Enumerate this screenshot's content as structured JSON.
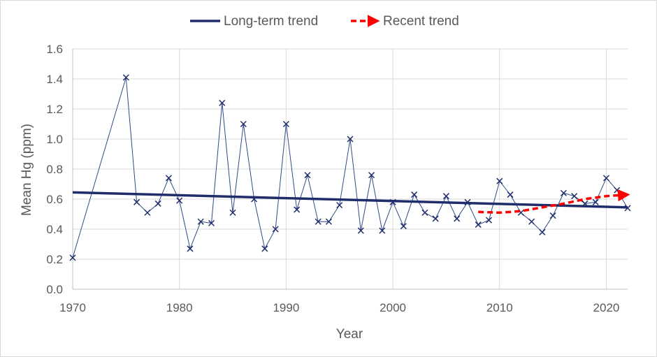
{
  "chart_data": {
    "type": "line",
    "title": "",
    "xlabel": "Year",
    "ylabel": "Mean Hg (ppm)",
    "xlim": [
      1970,
      2022
    ],
    "ylim": [
      0,
      1.6
    ],
    "xticks": [
      1970,
      1980,
      1990,
      2000,
      2010,
      2020
    ],
    "yticks": [
      "0.0",
      "0.2",
      "0.4",
      "0.6",
      "0.8",
      "1.0",
      "1.2",
      "1.4",
      "1.6"
    ],
    "grid": true,
    "legend_position": "top",
    "legend": [
      {
        "label": "Long-term trend",
        "color": "#1f2d6b",
        "style": "solid"
      },
      {
        "label": "Recent trend",
        "color": "#ff0000",
        "style": "dashed-arrow"
      }
    ],
    "series": [
      {
        "color": "#2f4a8a",
        "marker": "x",
        "x": [
          1970,
          1975,
          1976,
          1977,
          1978,
          1979,
          1980,
          1981,
          1982,
          1983,
          1984,
          1985,
          1986,
          1987,
          1988,
          1989,
          1990,
          1991,
          1992,
          1993,
          1994,
          1995,
          1996,
          1997,
          1998,
          1999,
          2000,
          2001,
          2002,
          2003,
          2004,
          2005,
          2006,
          2007,
          2008,
          2009,
          2010,
          2011,
          2012,
          2013,
          2014,
          2015,
          2016,
          2017,
          2018,
          2019,
          2020,
          2021,
          2022
        ],
        "y": [
          0.21,
          1.41,
          0.58,
          0.51,
          0.57,
          0.74,
          0.59,
          0.27,
          0.45,
          0.44,
          1.24,
          0.51,
          1.1,
          0.6,
          0.27,
          0.4,
          1.1,
          0.53,
          0.76,
          0.45,
          0.45,
          0.56,
          1.0,
          0.39,
          0.76,
          0.39,
          0.58,
          0.42,
          0.63,
          0.51,
          0.47,
          0.62,
          0.47,
          0.58,
          0.43,
          0.46,
          0.72,
          0.63,
          0.51,
          0.45,
          0.38,
          0.49,
          0.64,
          0.62,
          0.57,
          0.58,
          0.74,
          0.66,
          0.54
        ]
      },
      {
        "name": "Long-term trend",
        "color": "#1f2d6b",
        "x": [
          1970,
          2022
        ],
        "y": [
          0.645,
          0.545
        ]
      },
      {
        "name": "Recent trend",
        "color": "#ff0000",
        "x": [
          2008,
          2010,
          2012,
          2014,
          2016,
          2018,
          2020,
          2022
        ],
        "y": [
          0.515,
          0.51,
          0.52,
          0.545,
          0.57,
          0.6,
          0.62,
          0.63
        ]
      }
    ]
  }
}
